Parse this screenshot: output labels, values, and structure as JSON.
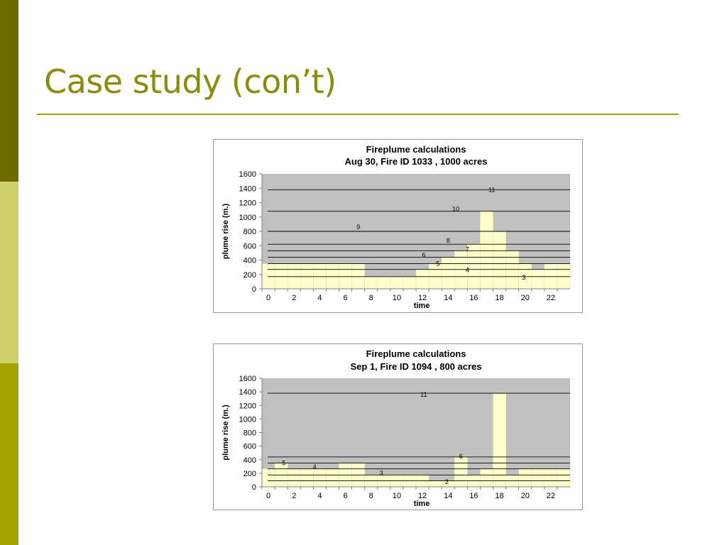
{
  "slide": {
    "title": "Case study (con’t)",
    "colors": {
      "title": "#8c8c0a",
      "rule": "#a3a300",
      "sidebar": [
        "#6b6b00",
        "#cfd16a",
        "#a3a300"
      ],
      "plot_bg": "#c0c0c0",
      "bar_fill": "#ffffcc",
      "bar_stroke": "#e5e5a8",
      "hline": "#000000"
    }
  },
  "chart_data": [
    {
      "type": "bar",
      "title": "Fireplume calculations",
      "subtitle": "Aug 30, Fire ID 1033 , 1000 acres",
      "xlabel": "time",
      "ylabel": "plume rise (m.)",
      "ylim": [
        0,
        1600
      ],
      "y_ticks": [
        0,
        200,
        400,
        600,
        800,
        1000,
        1200,
        1400,
        1600
      ],
      "x_ticks": [
        0,
        2,
        4,
        6,
        8,
        10,
        12,
        14,
        16,
        18,
        20,
        22
      ],
      "xlim": [
        -0.5,
        23.5
      ],
      "grid": false,
      "legend": "none",
      "hours": [
        0,
        1,
        2,
        3,
        4,
        5,
        6,
        7,
        8,
        9,
        10,
        11,
        12,
        13,
        14,
        15,
        16,
        17,
        18,
        19,
        20,
        21,
        22,
        23
      ],
      "values": [
        350,
        350,
        350,
        350,
        350,
        350,
        350,
        350,
        170,
        170,
        170,
        170,
        270,
        350,
        440,
        530,
        620,
        1080,
        800,
        530,
        350,
        270,
        350,
        350
      ],
      "hlines": [
        {
          "y": 170,
          "label": ""
        },
        {
          "y": 270,
          "label": ""
        },
        {
          "y": 350,
          "label": ""
        },
        {
          "y": 440,
          "label": ""
        },
        {
          "y": 530,
          "label": ""
        },
        {
          "y": 620,
          "label": ""
        },
        {
          "y": 800,
          "label": ""
        },
        {
          "y": 1080,
          "label": ""
        },
        {
          "y": 1380,
          "label": ""
        }
      ],
      "annotations": [
        {
          "text": "9",
          "x": 7,
          "y": 830
        },
        {
          "text": "11",
          "x": 17.4,
          "y": 1350
        },
        {
          "text": "10",
          "x": 14.6,
          "y": 1080
        },
        {
          "text": "8",
          "x": 14,
          "y": 640
        },
        {
          "text": "7",
          "x": 15.5,
          "y": 520
        },
        {
          "text": "6",
          "x": 12.1,
          "y": 440
        },
        {
          "text": "5",
          "x": 13.2,
          "y": 320
        },
        {
          "text": "4",
          "x": 15.5,
          "y": 230
        },
        {
          "text": "3",
          "x": 19.9,
          "y": 130
        }
      ]
    },
    {
      "type": "bar",
      "title": "Fireplume calculations",
      "subtitle": "Sep 1, Fire ID 1094 , 800 acres",
      "xlabel": "time",
      "ylabel": "plume rise (m.)",
      "ylim": [
        0,
        1600
      ],
      "y_ticks": [
        0,
        200,
        400,
        600,
        800,
        1000,
        1200,
        1400,
        1600
      ],
      "x_ticks": [
        0,
        2,
        4,
        6,
        8,
        10,
        12,
        14,
        16,
        18,
        20,
        22
      ],
      "xlim": [
        -0.5,
        23.5
      ],
      "grid": false,
      "legend": "none",
      "hours": [
        0,
        1,
        2,
        3,
        4,
        5,
        6,
        7,
        8,
        9,
        10,
        11,
        12,
        13,
        14,
        15,
        16,
        17,
        18,
        19,
        20,
        21,
        22,
        23
      ],
      "values": [
        265,
        350,
        265,
        265,
        265,
        265,
        350,
        350,
        175,
        175,
        175,
        175,
        175,
        90,
        90,
        440,
        175,
        265,
        1370,
        175,
        265,
        265,
        265,
        265
      ],
      "hlines": [
        {
          "y": 90,
          "label": ""
        },
        {
          "y": 175,
          "label": ""
        },
        {
          "y": 265,
          "label": ""
        },
        {
          "y": 350,
          "label": ""
        },
        {
          "y": 440,
          "label": ""
        },
        {
          "y": 1380,
          "label": ""
        }
      ],
      "annotations": [
        {
          "text": "11",
          "x": 12.1,
          "y": 1330
        },
        {
          "text": "5",
          "x": 1.2,
          "y": 320
        },
        {
          "text": "4",
          "x": 3.6,
          "y": 260
        },
        {
          "text": "3",
          "x": 8.8,
          "y": 170
        },
        {
          "text": "6",
          "x": 15,
          "y": 420
        },
        {
          "text": "2",
          "x": 13.9,
          "y": 40
        }
      ]
    }
  ]
}
